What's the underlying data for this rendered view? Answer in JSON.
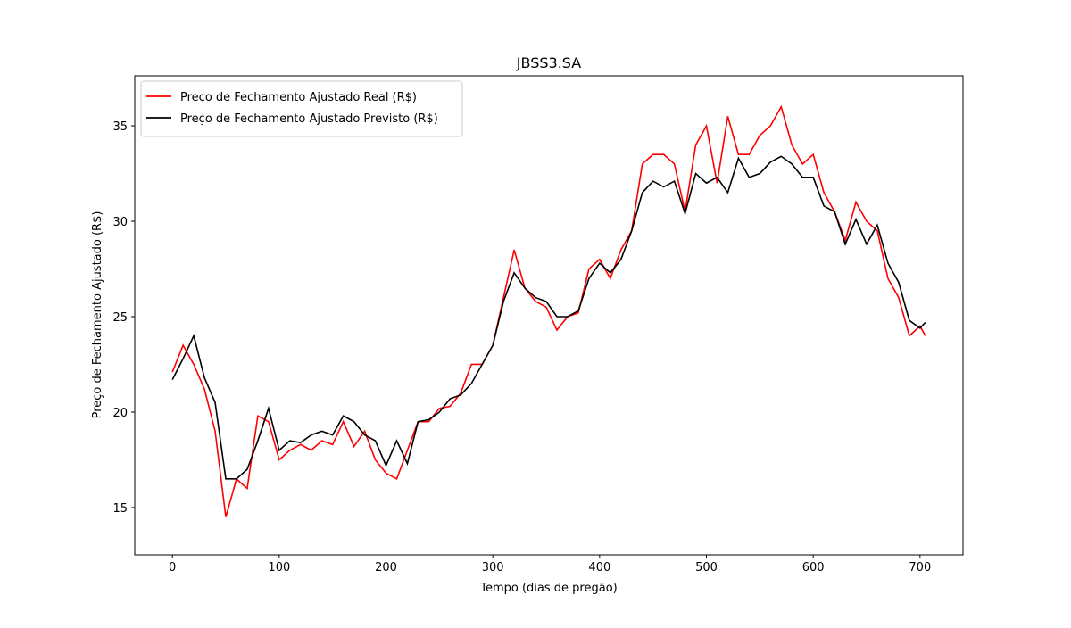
{
  "chart_data": {
    "type": "line",
    "title": "JBSS3.SA",
    "xlabel": "Tempo (dias de pregão)",
    "ylabel": "Preço de Fechamento Ajustado (R$)",
    "x": [
      0,
      10,
      20,
      30,
      40,
      50,
      60,
      70,
      80,
      90,
      100,
      110,
      120,
      130,
      140,
      150,
      160,
      170,
      180,
      190,
      200,
      210,
      220,
      230,
      240,
      250,
      260,
      270,
      280,
      290,
      300,
      310,
      320,
      330,
      340,
      350,
      360,
      370,
      380,
      390,
      400,
      410,
      420,
      430,
      440,
      450,
      460,
      470,
      480,
      490,
      500,
      510,
      520,
      530,
      540,
      550,
      560,
      570,
      580,
      590,
      600,
      610,
      620,
      630,
      640,
      650,
      660,
      670,
      680,
      690,
      700,
      705
    ],
    "series": [
      {
        "name": "Preço de Fechamento Ajustado Real (R$)",
        "color": "#ff0000",
        "values": [
          22.1,
          23.5,
          22.5,
          21.2,
          19.0,
          14.5,
          16.5,
          16.0,
          19.8,
          19.5,
          17.5,
          18.0,
          18.3,
          18.0,
          18.5,
          18.3,
          19.5,
          18.2,
          19.0,
          17.5,
          16.8,
          16.5,
          18.0,
          19.5,
          19.5,
          20.2,
          20.3,
          21.0,
          22.5,
          22.5,
          23.5,
          26.0,
          28.5,
          26.5,
          25.8,
          25.5,
          24.3,
          25.0,
          25.2,
          27.5,
          28.0,
          27.0,
          28.5,
          29.5,
          33.0,
          33.5,
          33.5,
          33.0,
          30.5,
          34.0,
          35.0,
          32.0,
          35.5,
          33.5,
          33.5,
          34.5,
          35.0,
          36.0,
          34.0,
          33.0,
          33.5,
          31.5,
          30.5,
          29.0,
          31.0,
          30.0,
          29.5,
          27.0,
          26.0,
          24.0,
          24.5,
          24.0
        ]
      },
      {
        "name": "Preço de Fechamento Ajustado Previsto (R$)",
        "color": "#000000",
        "values": [
          21.7,
          22.8,
          24.0,
          21.8,
          20.5,
          16.5,
          16.5,
          17.0,
          18.5,
          20.2,
          18.0,
          18.5,
          18.4,
          18.8,
          19.0,
          18.8,
          19.8,
          19.5,
          18.8,
          18.5,
          17.2,
          18.5,
          17.3,
          19.5,
          19.6,
          20.0,
          20.7,
          20.9,
          21.5,
          22.5,
          23.5,
          25.8,
          27.3,
          26.5,
          26.0,
          25.8,
          25.0,
          25.0,
          25.3,
          27.0,
          27.8,
          27.3,
          28.0,
          29.5,
          31.5,
          32.1,
          31.8,
          32.1,
          30.4,
          32.5,
          32.0,
          32.3,
          31.5,
          33.3,
          32.3,
          32.5,
          33.1,
          33.4,
          33.0,
          32.3,
          32.3,
          30.8,
          30.5,
          28.8,
          30.1,
          28.8,
          29.8,
          27.8,
          26.8,
          24.8,
          24.4,
          24.7
        ]
      }
    ],
    "xlim": [
      -35.25,
      740.25
    ],
    "xticks": [
      0,
      100,
      200,
      300,
      400,
      500,
      600,
      700
    ],
    "ylim": [
      12.52,
      37.62
    ],
    "yticks": [
      15,
      20,
      25,
      30,
      35
    ],
    "legend": "upper left"
  }
}
